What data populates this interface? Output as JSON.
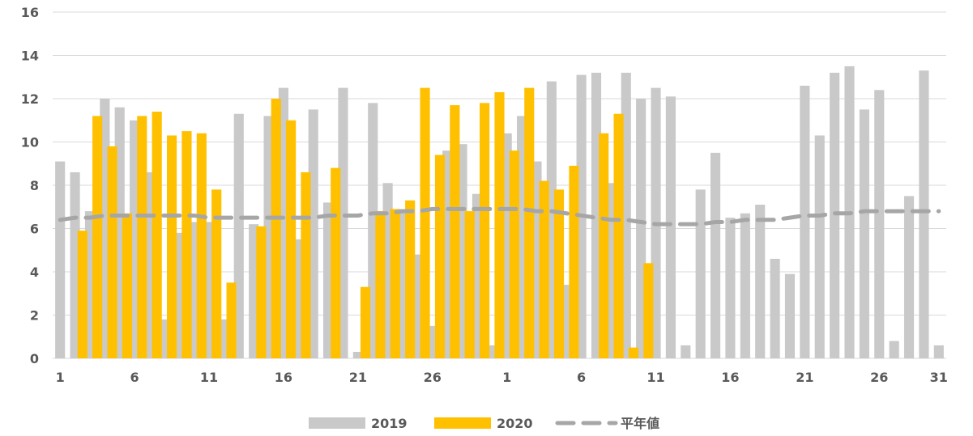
{
  "chart_data": {
    "type": "bar",
    "x_tick_labels": [
      "1",
      "6",
      "11",
      "16",
      "21",
      "26",
      "1",
      "6",
      "11",
      "16",
      "21",
      "26",
      "31"
    ],
    "y_tick_labels": [
      "0",
      "2",
      "4",
      "6",
      "8",
      "10",
      "12",
      "14",
      "16"
    ],
    "ylim": [
      0,
      16
    ],
    "grid": true,
    "legend_position": "bottom",
    "series": [
      {
        "name": "2019",
        "color": "#c9c9c9",
        "values": [
          9.1,
          8.6,
          6.8,
          12.0,
          11.6,
          11.0,
          8.6,
          1.8,
          5.8,
          6.3,
          6.3,
          1.8,
          11.3,
          6.2,
          11.2,
          12.5,
          5.5,
          11.5,
          7.2,
          12.5,
          0.3,
          11.8,
          8.1,
          6.9,
          4.8,
          1.5,
          9.6,
          9.9,
          7.6,
          0.6,
          10.4,
          11.2,
          9.1,
          12.8,
          3.4,
          13.1,
          13.2,
          8.1,
          13.2,
          12.0,
          12.5,
          12.1,
          0.6,
          7.8,
          9.5,
          6.5,
          6.7,
          7.1,
          4.6,
          3.9,
          12.6,
          10.3,
          13.2,
          13.5,
          11.5,
          12.4,
          0.8,
          7.5,
          13.3,
          0.6
        ]
      },
      {
        "name": "2020",
        "color": "#ffc000",
        "values": [
          null,
          5.9,
          11.2,
          9.8,
          6.7,
          11.2,
          11.4,
          10.3,
          10.5,
          10.4,
          7.8,
          3.5,
          null,
          6.1,
          12.0,
          11.0,
          8.6,
          null,
          8.8,
          null,
          3.3,
          6.8,
          6.9,
          7.3,
          12.5,
          9.4,
          11.7,
          6.8,
          11.8,
          12.3,
          9.6,
          12.5,
          8.2,
          7.8,
          8.9,
          null,
          10.4,
          11.3,
          0.5,
          4.4,
          null,
          null,
          null,
          null,
          null,
          null,
          null,
          null,
          null,
          null,
          null,
          null,
          null,
          null,
          null,
          null,
          null,
          null,
          null,
          null
        ]
      },
      {
        "name": "平年値",
        "type": "line",
        "style": "dashed",
        "color": "#a6a6a6",
        "values": [
          6.4,
          6.5,
          6.5,
          6.6,
          6.6,
          6.6,
          6.6,
          6.6,
          6.6,
          6.6,
          6.5,
          6.5,
          6.5,
          6.5,
          6.5,
          6.5,
          6.5,
          6.5,
          6.6,
          6.6,
          6.6,
          6.7,
          6.7,
          6.8,
          6.8,
          6.9,
          6.9,
          6.9,
          6.9,
          6.9,
          6.9,
          6.9,
          6.8,
          6.8,
          6.7,
          6.6,
          6.5,
          6.4,
          6.4,
          6.3,
          6.2,
          6.2,
          6.2,
          6.2,
          6.3,
          6.3,
          6.4,
          6.4,
          6.4,
          6.5,
          6.6,
          6.6,
          6.7,
          6.7,
          6.8,
          6.8,
          6.8,
          6.8,
          6.8,
          6.8
        ]
      }
    ]
  }
}
